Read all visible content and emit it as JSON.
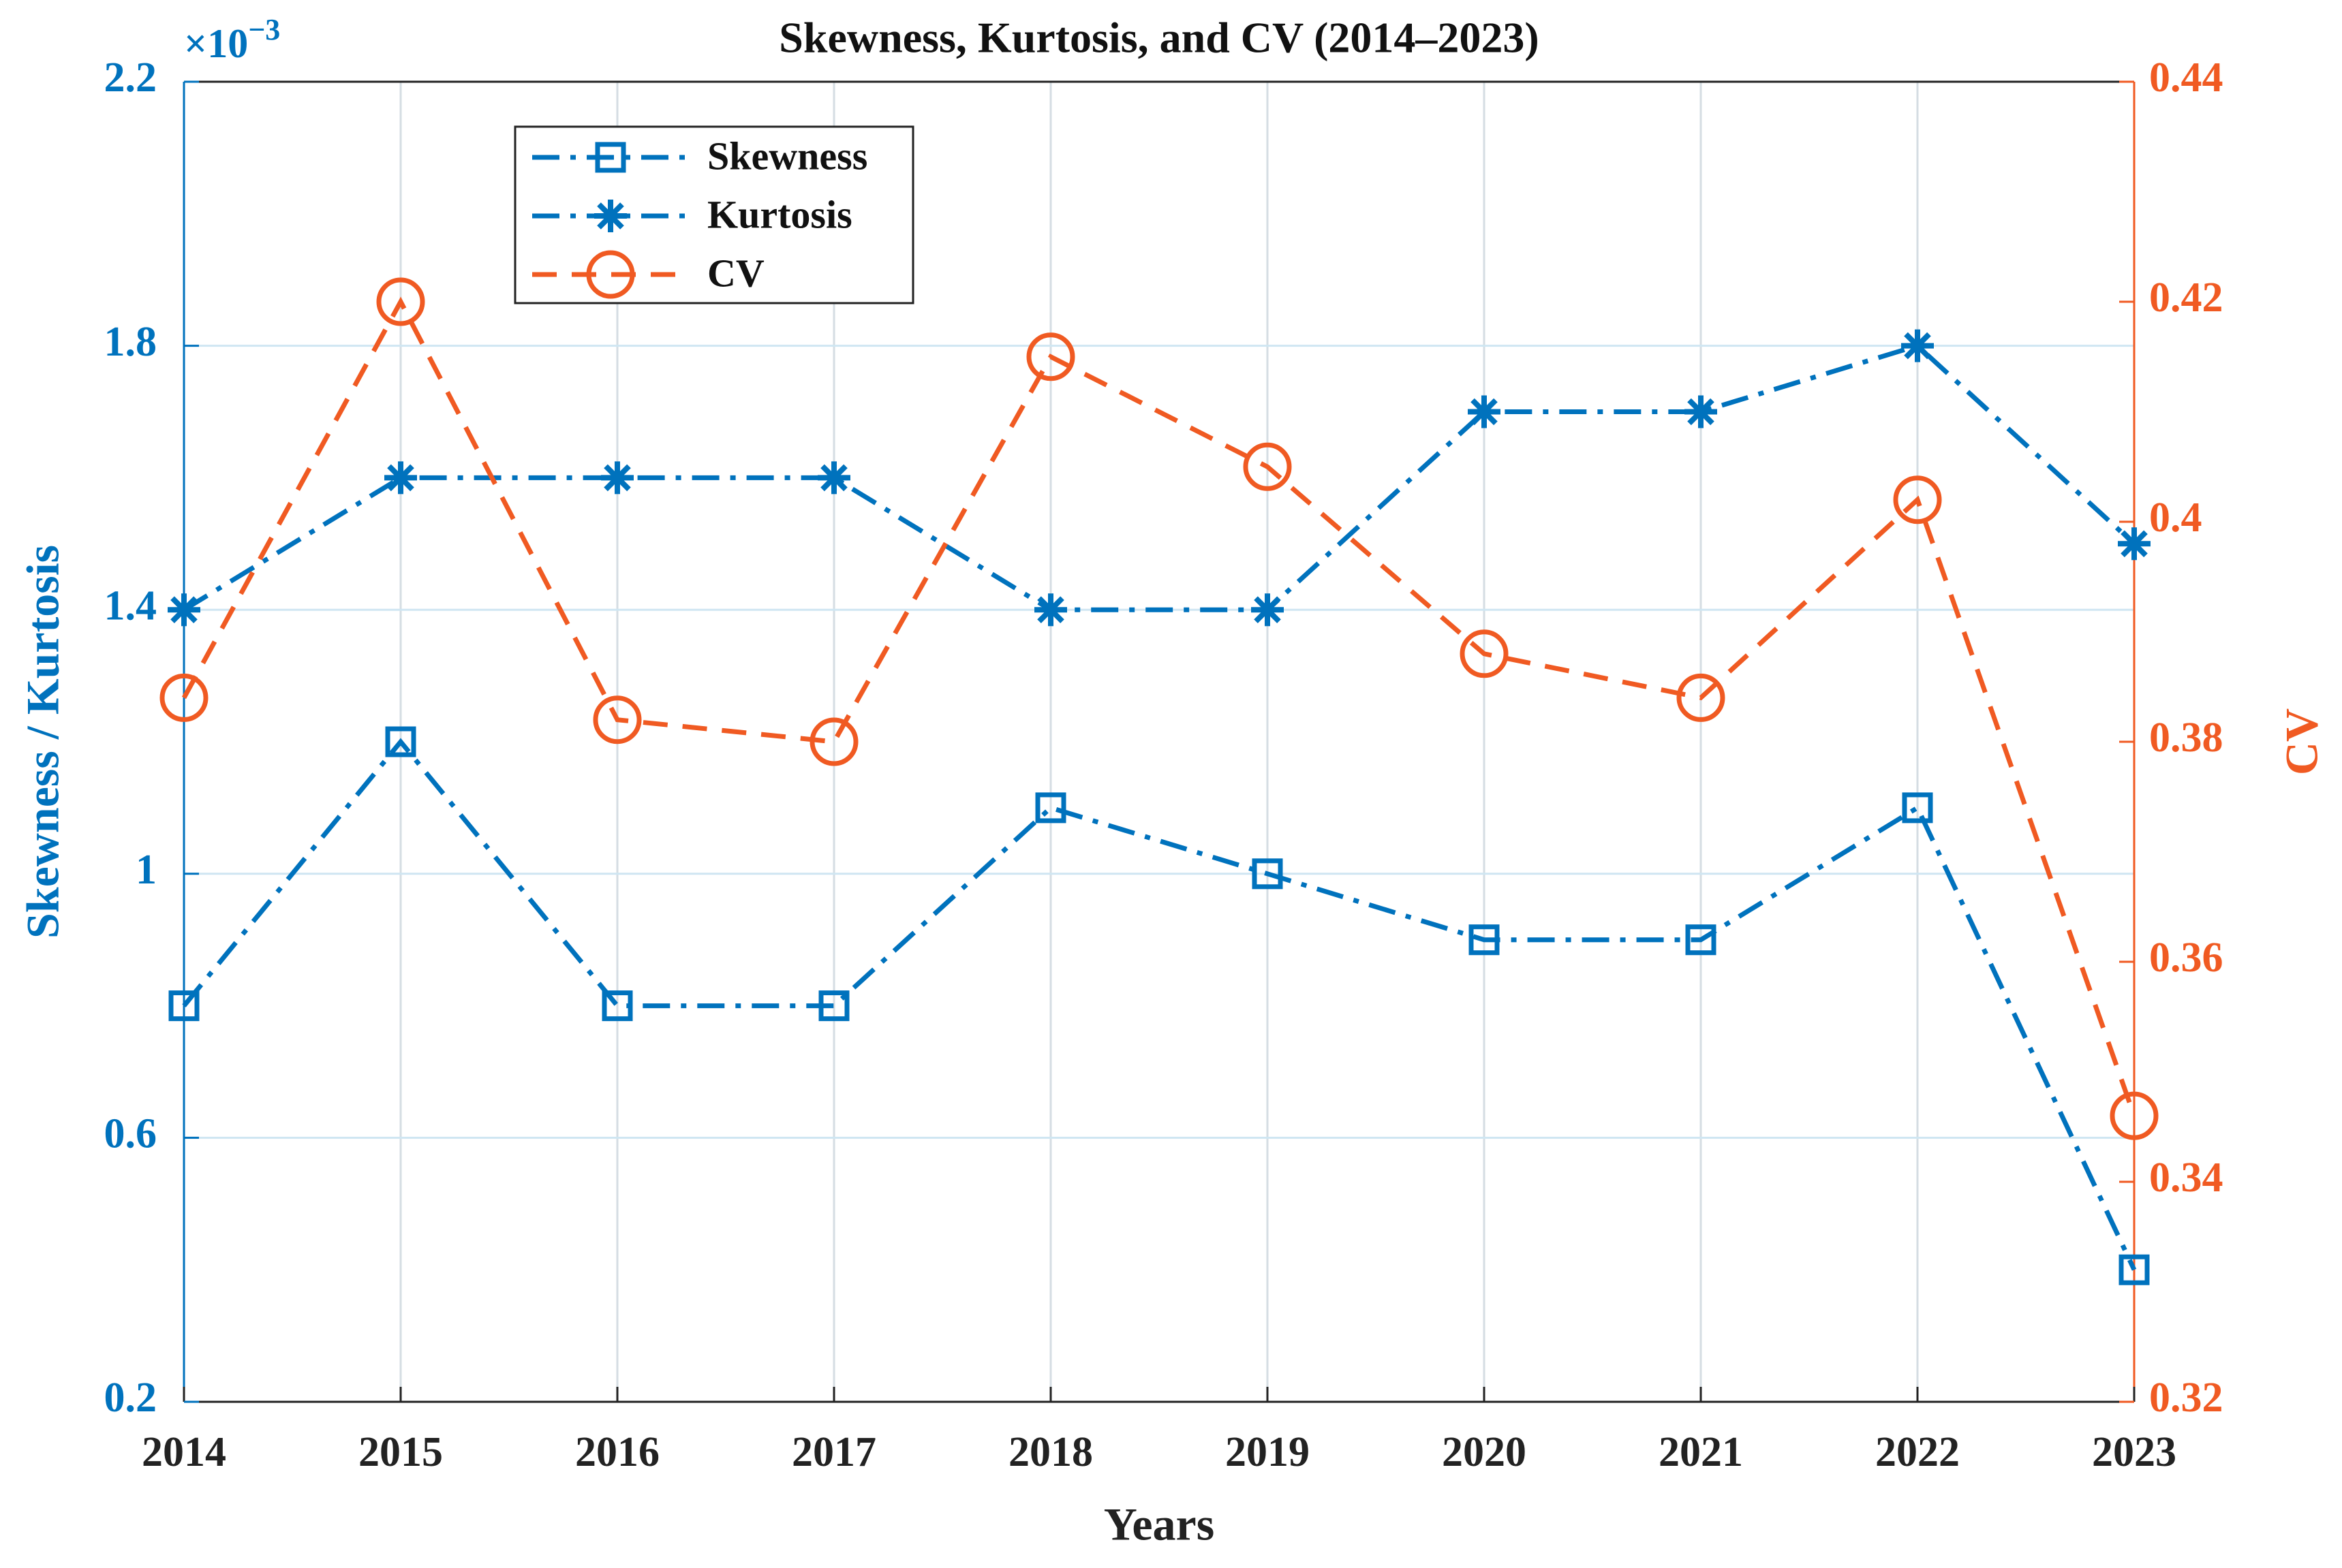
{
  "chart_data": {
    "type": "line",
    "title": "Skewness, Kurtosis, and CV (2014–2023)",
    "x_label": "Years",
    "y_label": "Skewness / Kurtosis",
    "y2_label": "CV",
    "y_exponent_base": "×10",
    "y_exponent": "−3",
    "x": [
      2014,
      2015,
      2016,
      2017,
      2018,
      2019,
      2020,
      2021,
      2022,
      2023
    ],
    "xlim": [
      2014,
      2023
    ],
    "xticks": [
      2014,
      2015,
      2016,
      2017,
      2018,
      2019,
      2020,
      2021,
      2022,
      2023
    ],
    "ylim": [
      0.2,
      2.2
    ],
    "yticks": [
      0.2,
      0.6,
      1,
      1.4,
      1.8,
      2.2
    ],
    "y2lim": [
      0.32,
      0.44
    ],
    "y2ticks": [
      0.32,
      0.34,
      0.36,
      0.38,
      0.4,
      0.42,
      0.44
    ],
    "y_color": "#0072BD",
    "y2_color": "#F05A22",
    "grid": true,
    "legend": "upper left",
    "series": [
      {
        "name": "Skewness",
        "color": "#0072BD",
        "line_style": "dashdot",
        "marker": "square",
        "axis": "y",
        "values": [
          0.8,
          1.2,
          0.8,
          0.8,
          1.1,
          1.0,
          0.9,
          0.9,
          1.1,
          0.4
        ]
      },
      {
        "name": "Kurtosis",
        "color": "#0072BD",
        "line_style": "dashdot",
        "marker": "asterisk",
        "axis": "y",
        "values": [
          1.4,
          1.6,
          1.6,
          1.6,
          1.4,
          1.4,
          1.7,
          1.7,
          1.8,
          1.5
        ]
      },
      {
        "name": "CV",
        "color": "#F05A22",
        "line_style": "dashed",
        "marker": "circle",
        "axis": "y2",
        "values": [
          0.384,
          0.42,
          0.382,
          0.38,
          0.415,
          0.405,
          0.388,
          0.384,
          0.402,
          0.346
        ]
      }
    ]
  }
}
